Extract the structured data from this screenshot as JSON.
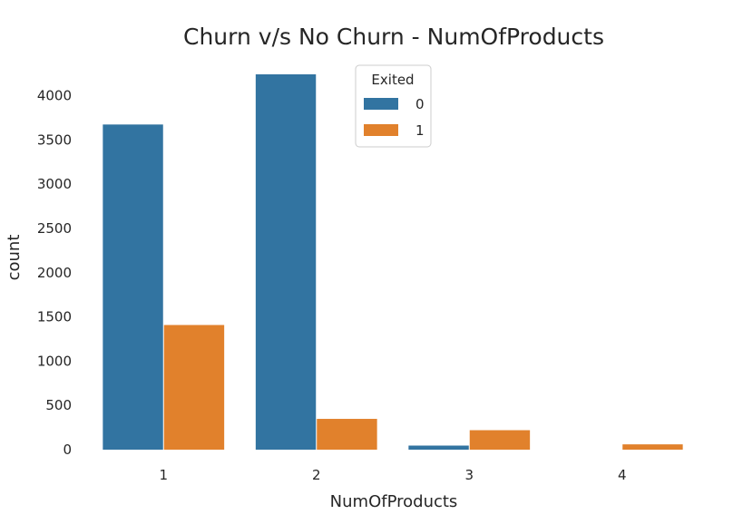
{
  "chart_data": {
    "type": "bar",
    "title": "Churn v/s No Churn - NumOfProducts",
    "xlabel": "NumOfProducts",
    "ylabel": "count",
    "categories": [
      "1",
      "2",
      "3",
      "4"
    ],
    "series": [
      {
        "name": "0",
        "color": "#3274a1",
        "values": [
          3675,
          4242,
          46,
          0
        ]
      },
      {
        "name": "1",
        "color": "#e1812c",
        "values": [
          1409,
          348,
          220,
          60
        ]
      }
    ],
    "ylim": [
      0,
      4242
    ],
    "yticks": [
      0,
      500,
      1000,
      1500,
      2000,
      2500,
      3000,
      3500,
      4000
    ],
    "legend": {
      "title": "Exited",
      "position": "top-center"
    },
    "grid": false
  }
}
